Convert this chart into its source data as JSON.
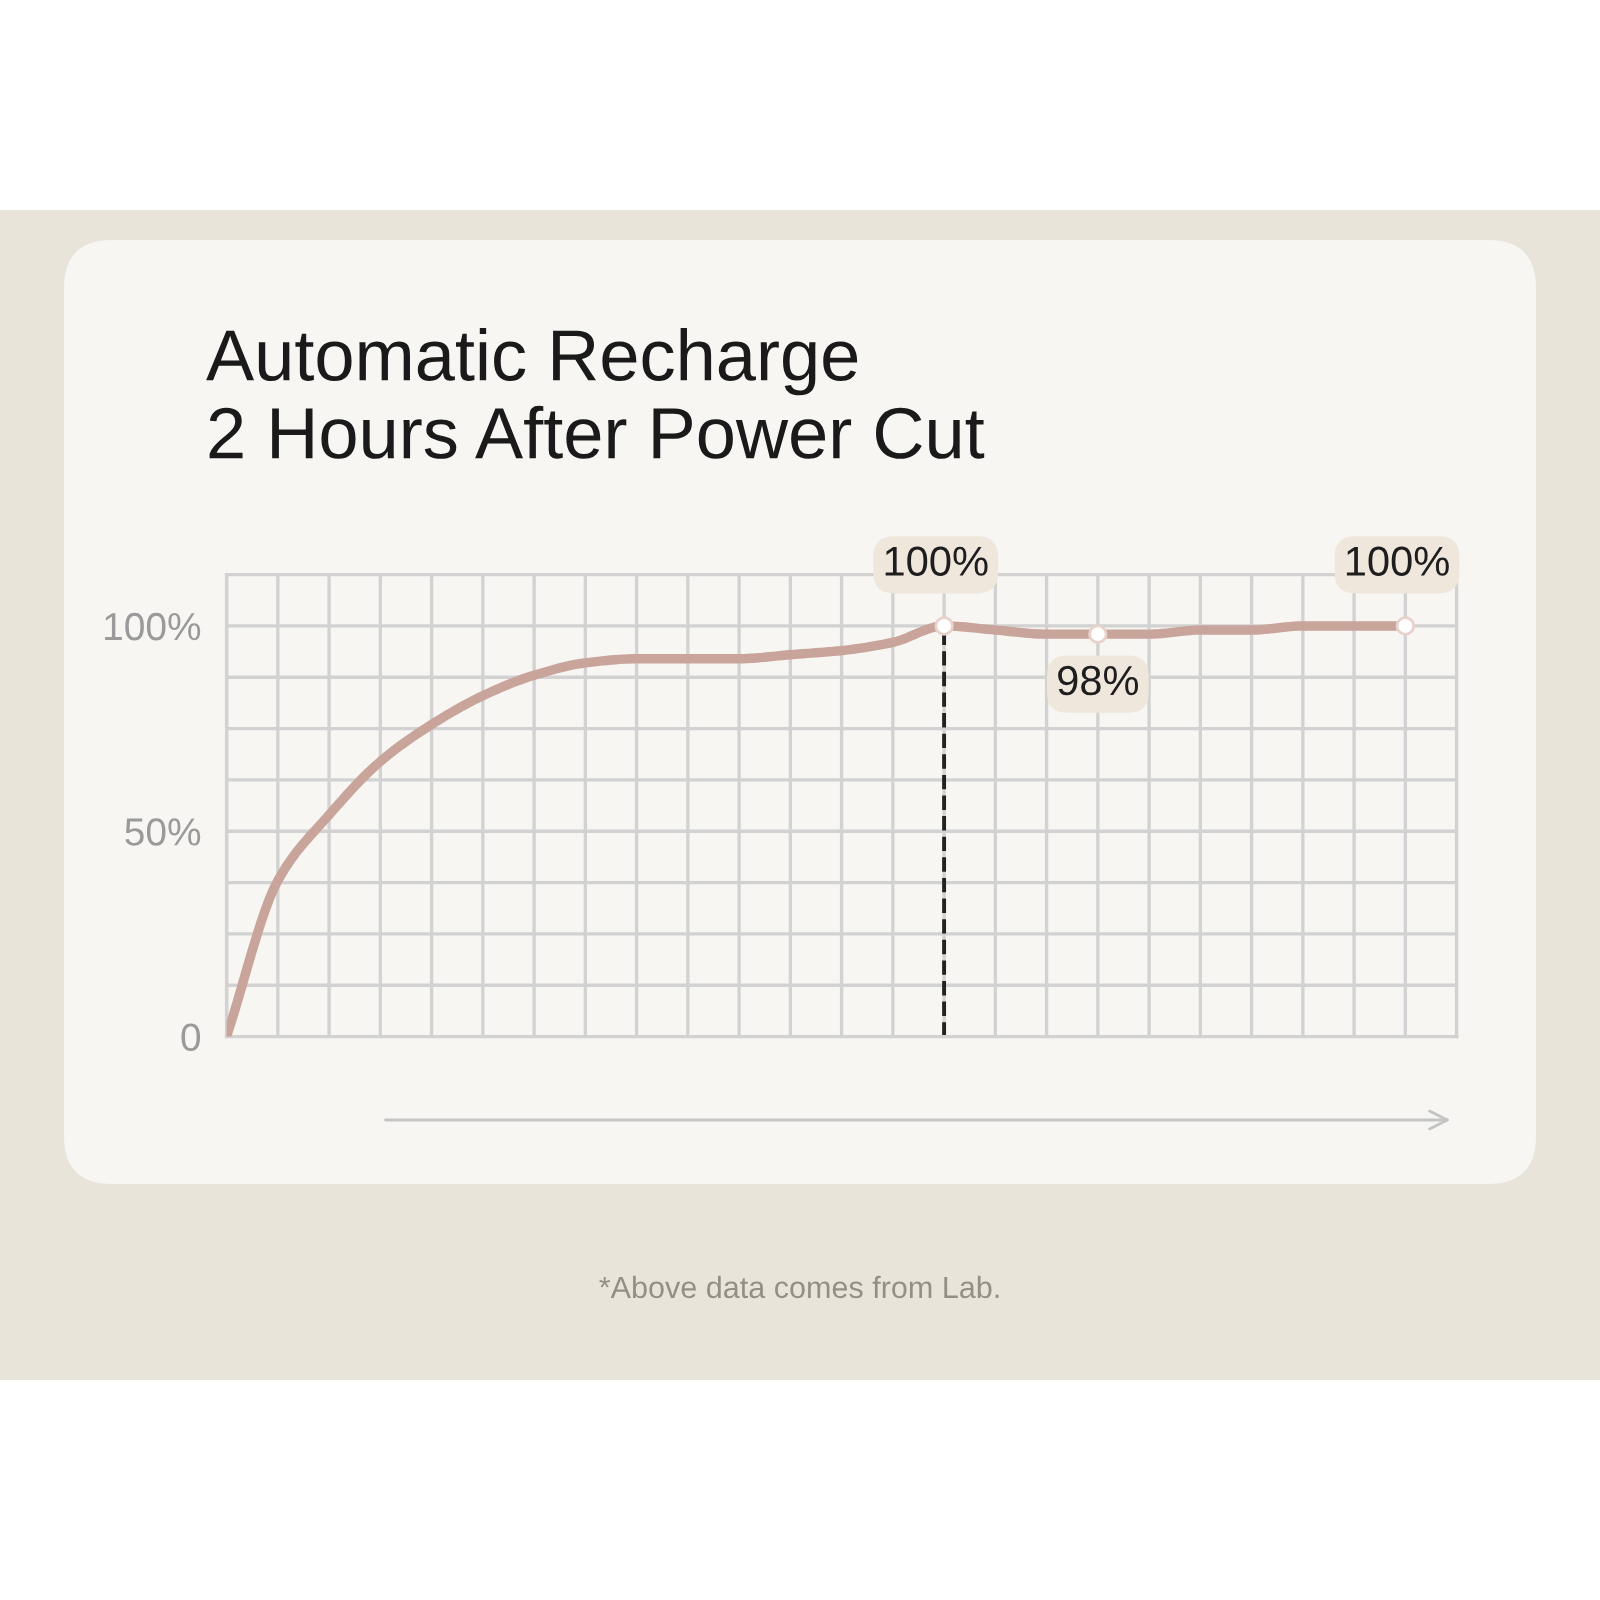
{
  "chart_data": {
    "type": "line",
    "title": "Automatic Recharge\n2 Hours After Power Cut",
    "annotations": [
      "*Above data comes from Lab."
    ],
    "categories": [
      null,
      null,
      null,
      null,
      null,
      null,
      null,
      null,
      null,
      null,
      null,
      null,
      null,
      null,
      null,
      null,
      null,
      null,
      null,
      null,
      null,
      null,
      null,
      null
    ],
    "series": [
      {
        "color": "#c9a49b",
        "values": [
          0,
          38,
          54,
          67,
          76,
          83,
          88,
          91,
          92,
          92,
          92,
          93,
          94,
          96,
          100,
          99,
          98,
          98,
          98,
          99,
          99,
          100,
          100,
          100
        ]
      },
      {
        "type": "scatter",
        "color": "#ffffff",
        "marker": "circle",
        "values": [
          null,
          null,
          null,
          null,
          null,
          null,
          null,
          null,
          null,
          null,
          null,
          null,
          null,
          null,
          100,
          null,
          null,
          98,
          null,
          null,
          null,
          null,
          null,
          100
        ],
        "value_labels": [
          null,
          null,
          null,
          null,
          null,
          null,
          null,
          null,
          null,
          null,
          null,
          null,
          null,
          null,
          "100%",
          null,
          null,
          "98%",
          null,
          null,
          null,
          null,
          null,
          "100%"
        ]
      }
    ],
    "ylim": [
      0,
      112.5
    ],
    "yticks": [
      {
        "value": 0,
        "label": "0"
      },
      {
        "value": 12.5,
        "label": null
      },
      {
        "value": 25,
        "label": null
      },
      {
        "value": 37.5,
        "label": null
      },
      {
        "value": 50,
        "label": "50%"
      },
      {
        "value": 62.5,
        "label": null
      },
      {
        "value": 75,
        "label": null
      },
      {
        "value": 87.5,
        "label": null
      },
      {
        "value": 100,
        "label": "100%"
      }
    ],
    "grid": true,
    "tick_labels": "y"
  }
}
